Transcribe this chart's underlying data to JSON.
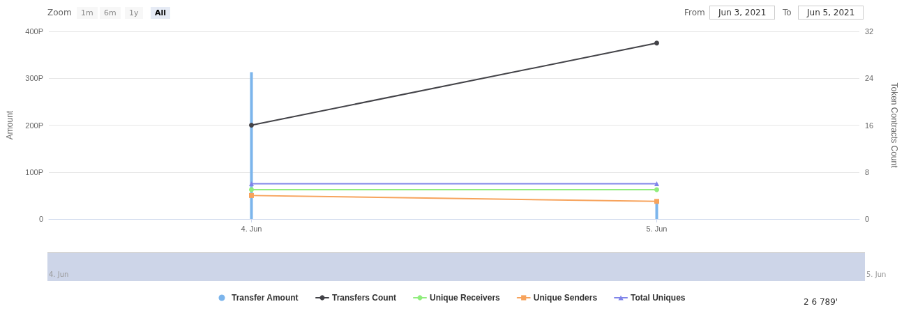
{
  "chart_data": {
    "type": "line",
    "ylabel": "Amount",
    "y2label": "Token Contracts Count",
    "x": [
      "2021-06-04",
      "2021-06-05"
    ],
    "xlim": [
      "2021-06-03T12:00",
      "2021-06-05T12:00"
    ],
    "xticks": [
      {
        "value": "2021-06-04",
        "label": "4. Jun"
      },
      {
        "value": "2021-06-05",
        "label": "5. Jun"
      }
    ],
    "ylim": [
      0,
      400
    ],
    "yticks": [
      0,
      {
        "value": 100,
        "label": "100P"
      },
      {
        "value": 200,
        "label": "200P"
      },
      {
        "value": 300,
        "label": "300P"
      },
      {
        "value": 400,
        "label": "400P"
      }
    ],
    "y2lim": [
      0,
      32
    ],
    "y2ticks": [
      0,
      8,
      16,
      24,
      32
    ],
    "grid": "y",
    "legend": "bottom",
    "series": [
      {
        "name": "Transfer Amount",
        "type": "bar",
        "color": "#7cb5ec",
        "values": [
          313,
          35
        ]
      },
      {
        "name": "Transfers Count",
        "axis": "y2",
        "marker": "circle",
        "color": "#434348",
        "values": [
          16,
          30
        ]
      },
      {
        "name": "Unique Receivers",
        "axis": "y2",
        "marker": "circle",
        "color": "#90ed7d",
        "values": [
          5,
          5
        ]
      },
      {
        "name": "Unique Senders",
        "axis": "y2",
        "marker": "square",
        "color": "#f7a35c",
        "values": [
          4,
          3
        ]
      },
      {
        "name": "Total Uniques",
        "axis": "y2",
        "marker": "triangle",
        "color": "#8085e9",
        "values": [
          6,
          6
        ]
      }
    ],
    "annotations": [
      "Zoom",
      "1m",
      "6m",
      "1y",
      "All",
      "From",
      "Jun 3, 2021",
      "To",
      "Jun 5, 2021",
      "2 6 789'"
    ]
  }
}
